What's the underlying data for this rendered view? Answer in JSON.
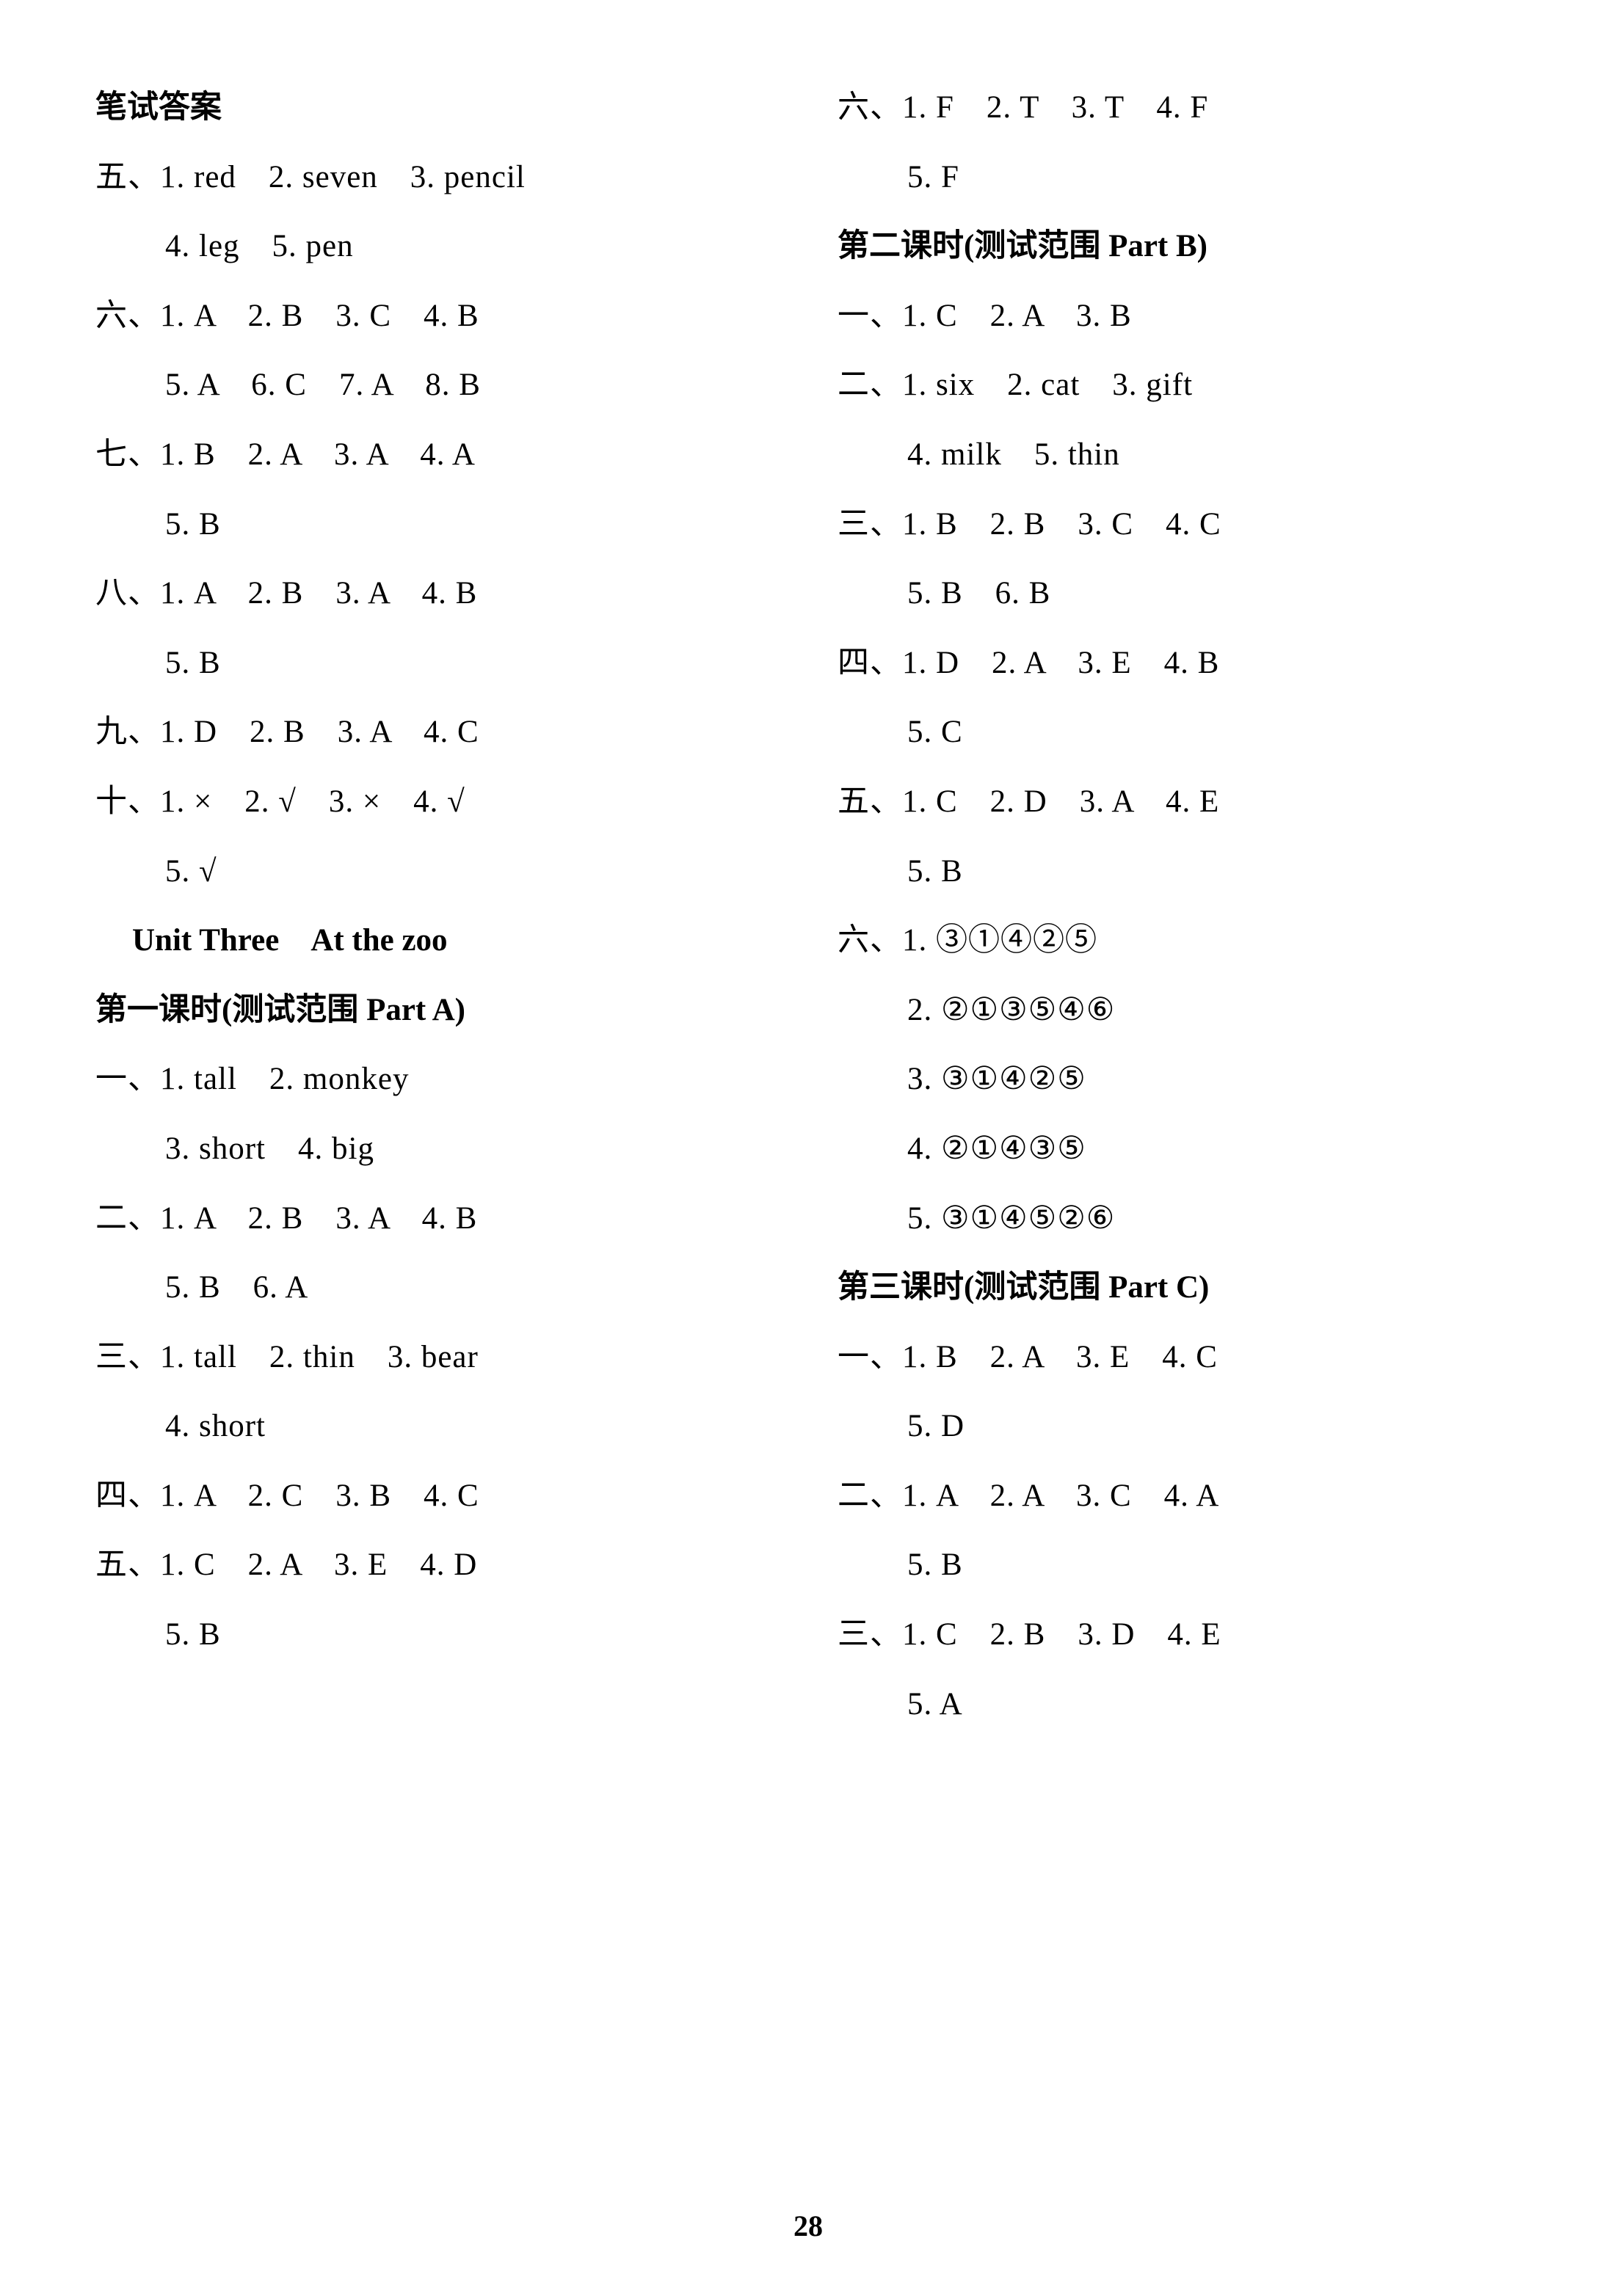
{
  "page_number": "28",
  "left_column": {
    "header": "笔试答案",
    "sections": [
      {
        "label": "五、",
        "lines": [
          "1. red　2. seven　3. pencil",
          "4. leg　5. pen"
        ]
      },
      {
        "label": "六、",
        "lines": [
          "1. A　2. B　3. C　4. B",
          "5. A　6. C　7. A　8. B"
        ]
      },
      {
        "label": "七、",
        "lines": [
          "1. B　2. A　3. A　4. A",
          "5. B"
        ]
      },
      {
        "label": "八、",
        "lines": [
          "1. A　2. B　3. A　4. B",
          "5. B"
        ]
      },
      {
        "label": "九、",
        "lines": [
          "1. D　2. B　3. A　4. C"
        ]
      },
      {
        "label": "十、",
        "lines": [
          "1. ×　2. √　3. ×　4. √",
          "5. √"
        ]
      }
    ],
    "unit_header": "Unit Three　At the zoo",
    "lesson1_header": "第一课时(测试范围 Part A)",
    "lesson1_sections": [
      {
        "label": "一、",
        "lines": [
          "1. tall　2. monkey",
          "3. short　4. big"
        ]
      },
      {
        "label": "二、",
        "lines": [
          "1. A　2. B　3. A　4. B",
          "5. B　6. A"
        ]
      },
      {
        "label": "三、",
        "lines": [
          "1. tall　2. thin　3. bear",
          "4. short"
        ]
      },
      {
        "label": "四、",
        "lines": [
          "1. A　2. C　3. B　4. C"
        ]
      },
      {
        "label": "五、",
        "lines": [
          "1. C　2. A　3. E　4. D",
          "5. B"
        ]
      }
    ]
  },
  "right_column": {
    "top_section": {
      "label": "六、",
      "lines": [
        "1. F　2. T　3. T　4. F",
        "5. F"
      ]
    },
    "lesson2_header": "第二课时(测试范围 Part B)",
    "lesson2_sections": [
      {
        "label": "一、",
        "lines": [
          "1. C　2. A　3. B"
        ]
      },
      {
        "label": "二、",
        "lines": [
          "1. six　2. cat　3. gift",
          "4. milk　5. thin"
        ]
      },
      {
        "label": "三、",
        "lines": [
          "1. B　2. B　3. C　4. C",
          "5. B　6. B"
        ]
      },
      {
        "label": "四、",
        "lines": [
          "1. D　2. A　3. E　4. B",
          "5. C"
        ]
      },
      {
        "label": "五、",
        "lines": [
          "1. C　2. D　3. A　4. E",
          "5. B"
        ]
      },
      {
        "label": "六、",
        "lines": [
          "1. ③①④②⑤",
          "2. ②①③⑤④⑥",
          "3. ③①④②⑤",
          "4. ②①④③⑤",
          "5. ③①④⑤②⑥"
        ]
      }
    ],
    "lesson3_header": "第三课时(测试范围 Part C)",
    "lesson3_sections": [
      {
        "label": "一、",
        "lines": [
          "1. B　2. A　3. E　4. C",
          "5. D"
        ]
      },
      {
        "label": "二、",
        "lines": [
          "1. A　2. A　3. C　4. A",
          "5. B"
        ]
      },
      {
        "label": "三、",
        "lines": [
          "1. C　2. B　3. D　4. E",
          "5. A"
        ]
      }
    ]
  }
}
